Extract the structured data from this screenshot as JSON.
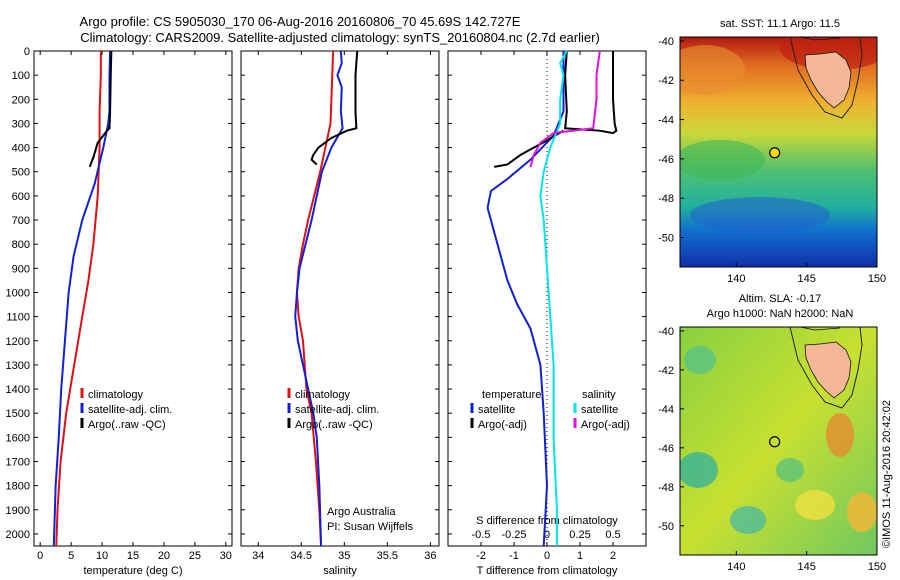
{
  "header": {
    "line1": "Argo profile: CS 5905030_170 06-Aug-2016 20160806_70 45.69S 142.727E",
    "line2": "Climatology: CARS2009. Satellite-adjusted climatology: synTS_20160804.nc (2.7d earlier)"
  },
  "depth_ticks": [
    0,
    100,
    200,
    300,
    400,
    500,
    600,
    700,
    800,
    900,
    1000,
    1100,
    1200,
    1300,
    1400,
    1500,
    1600,
    1700,
    1800,
    1900,
    2000
  ],
  "colors": {
    "clim": "#e01010",
    "sat": "#1020d8",
    "argo": "#000000",
    "sal": "#00e5ee",
    "argoadj": "#e010e0"
  },
  "side_text": "©IMOS 11-Aug-2016 20:42:02",
  "chart_data": [
    {
      "type": "line",
      "xlabel": "temperature (deg C)",
      "ylim": [
        2050,
        0
      ],
      "xlim": [
        -1,
        31
      ],
      "xticks": [
        0,
        5,
        10,
        15,
        20,
        25,
        30
      ],
      "legend": [
        "climatology",
        "satellite-adj. clim.",
        "Argo(..raw -QC)"
      ],
      "series": [
        {
          "name": "climatology",
          "color": "clim",
          "points": [
            [
              9.8,
              0
            ],
            [
              9.8,
              100
            ],
            [
              9.6,
              250
            ],
            [
              9.6,
              400
            ],
            [
              9.3,
              600
            ],
            [
              8.6,
              800
            ],
            [
              7.8,
              950
            ],
            [
              6.8,
              1100
            ],
            [
              5.5,
              1300
            ],
            [
              4.2,
              1500
            ],
            [
              3.3,
              1700
            ],
            [
              2.8,
              1900
            ],
            [
              2.6,
              2050
            ]
          ]
        },
        {
          "name": "satellite-adj. clim.",
          "color": "sat",
          "points": [
            [
              11.3,
              0
            ],
            [
              11.2,
              100
            ],
            [
              11.2,
              250
            ],
            [
              11.0,
              300
            ],
            [
              10.2,
              400
            ],
            [
              8.8,
              550
            ],
            [
              6.8,
              700
            ],
            [
              5.4,
              850
            ],
            [
              4.6,
              1000
            ],
            [
              4.0,
              1200
            ],
            [
              3.4,
              1400
            ],
            [
              3.0,
              1600
            ],
            [
              2.5,
              1800
            ],
            [
              2.2,
              2050
            ]
          ]
        },
        {
          "name": "Argo(..raw -QC)",
          "color": "argo",
          "points": [
            [
              11.5,
              0
            ],
            [
              11.4,
              100
            ],
            [
              11.3,
              250
            ],
            [
              11.2,
              320
            ],
            [
              10.8,
              330
            ],
            [
              9.3,
              380
            ],
            [
              8.6,
              440
            ],
            [
              8.0,
              480
            ]
          ]
        }
      ]
    },
    {
      "type": "line",
      "xlabel": "salinity",
      "ylim": [
        2050,
        0
      ],
      "xlim": [
        33.8,
        36.1
      ],
      "xticks": [
        34,
        34.5,
        35,
        35.5,
        36
      ],
      "xticklabels": [
        "34",
        "34.5",
        "35",
        "35.5",
        "36"
      ],
      "legend": [
        "climatology",
        "satellite-adj. clim.",
        "Argo(..raw -QC)"
      ],
      "annotation": [
        "Argo Australia",
        "PI: Susan Wijffels"
      ],
      "series": [
        {
          "name": "climatology",
          "color": "clim",
          "points": [
            [
              34.87,
              0
            ],
            [
              34.86,
              100
            ],
            [
              34.85,
              200
            ],
            [
              34.84,
              300
            ],
            [
              34.78,
              400
            ],
            [
              34.72,
              500
            ],
            [
              34.65,
              600
            ],
            [
              34.58,
              700
            ],
            [
              34.52,
              800
            ],
            [
              34.47,
              900
            ],
            [
              34.45,
              1000
            ],
            [
              34.47,
              1100
            ],
            [
              34.52,
              1200
            ],
            [
              34.56,
              1400
            ],
            [
              34.62,
              1500
            ],
            [
              34.67,
              1700
            ],
            [
              34.71,
              1900
            ],
            [
              34.73,
              2050
            ]
          ]
        },
        {
          "name": "satellite-adj. clim.",
          "color": "sat",
          "points": [
            [
              34.96,
              0
            ],
            [
              34.97,
              50
            ],
            [
              34.92,
              100
            ],
            [
              34.97,
              150
            ],
            [
              34.96,
              250
            ],
            [
              34.98,
              320
            ],
            [
              34.85,
              400
            ],
            [
              34.74,
              500
            ],
            [
              34.68,
              600
            ],
            [
              34.62,
              700
            ],
            [
              34.55,
              800
            ],
            [
              34.48,
              900
            ],
            [
              34.45,
              1000
            ],
            [
              34.43,
              1100
            ],
            [
              34.46,
              1200
            ],
            [
              34.52,
              1300
            ],
            [
              34.58,
              1400
            ],
            [
              34.64,
              1500
            ],
            [
              34.68,
              1600
            ],
            [
              34.71,
              1800
            ],
            [
              34.73,
              2050
            ]
          ]
        },
        {
          "name": "Argo(..raw -QC)",
          "color": "argo",
          "points": [
            [
              35.15,
              0
            ],
            [
              35.13,
              100
            ],
            [
              35.13,
              250
            ],
            [
              35.14,
              320
            ],
            [
              35.03,
              330
            ],
            [
              34.85,
              360
            ],
            [
              34.7,
              400
            ],
            [
              34.64,
              430
            ],
            [
              34.62,
              450
            ],
            [
              34.68,
              470
            ]
          ]
        }
      ]
    },
    {
      "type": "line",
      "xlabel": "T difference from climatology",
      "xlabel_top": "S difference from climatology",
      "ylim": [
        2050,
        0
      ],
      "xlim": [
        -3,
        3
      ],
      "xticks": [
        -2,
        -1,
        0,
        1,
        2
      ],
      "xticklabels_top": [
        "-0.5",
        "-0.25",
        "0",
        "0.25",
        "0.5"
      ],
      "legend": [
        "temperature",
        "satellite",
        "Argo(-adj)",
        "salinity",
        "satellite",
        "Argo(-adj)"
      ],
      "series": [
        {
          "name": "satellite",
          "color": "sat",
          "points": [
            [
              0.5,
              0
            ],
            [
              0.5,
              100
            ],
            [
              0.5,
              250
            ],
            [
              0.2,
              350
            ],
            [
              -0.5,
              450
            ],
            [
              -1.2,
              530
            ],
            [
              -1.7,
              580
            ],
            [
              -1.8,
              650
            ],
            [
              -1.6,
              750
            ],
            [
              -1.4,
              850
            ],
            [
              -1.2,
              950
            ],
            [
              -0.9,
              1050
            ],
            [
              -0.5,
              1150
            ],
            [
              -0.2,
              1300
            ],
            [
              -0.1,
              1500
            ],
            [
              0.0,
              1800
            ],
            [
              -0.1,
              2050
            ]
          ]
        },
        {
          "name": "Argo(-adj)",
          "color": "argo",
          "points": [
            [
              0.6,
              0
            ],
            [
              0.55,
              100
            ],
            [
              0.6,
              250
            ],
            [
              0.55,
              320
            ],
            [
              1.6,
              330
            ],
            [
              2.0,
              340
            ],
            [
              2.1,
              330
            ],
            [
              2.05,
              300
            ],
            [
              2.0,
              200
            ],
            [
              2.0,
              100
            ],
            [
              2.0,
              0
            ]
          ]
        },
        {
          "name": "Argo(-adj)",
          "color": "argo",
          "points": [
            [
              0.5,
              330
            ],
            [
              0.0,
              370
            ],
            [
              -0.8,
              430
            ],
            [
              -1.2,
              470
            ],
            [
              -1.6,
              480
            ]
          ]
        },
        {
          "name": "satellite",
          "color": "sal",
          "points": [
            [
              0.6,
              0
            ],
            [
              0.4,
              50
            ],
            [
              0.5,
              100
            ],
            [
              0.4,
              200
            ],
            [
              0.4,
              300
            ],
            [
              0.1,
              400
            ],
            [
              -0.1,
              500
            ],
            [
              -0.2,
              600
            ],
            [
              -0.1,
              700
            ],
            [
              0.0,
              900
            ],
            [
              0.1,
              1100
            ],
            [
              0.2,
              1300
            ],
            [
              0.2,
              1600
            ],
            [
              0.3,
              1900
            ],
            [
              0.3,
              2050
            ]
          ]
        },
        {
          "name": "Argo(-adj)",
          "color": "argoadj",
          "points": [
            [
              1.6,
              0
            ],
            [
              1.5,
              100
            ],
            [
              1.5,
              200
            ],
            [
              1.4,
              320
            ],
            [
              0.2,
              340
            ],
            [
              -0.2,
              380
            ],
            [
              -0.4,
              430
            ],
            [
              -0.5,
              480
            ]
          ]
        }
      ]
    },
    {
      "type": "heatmap",
      "title": "sat. SST: 11.1  Argo: 11.5",
      "xlim": [
        136,
        150
      ],
      "ylim": [
        -51.5,
        -39.8
      ],
      "xticks": [
        140,
        145,
        150
      ],
      "yticks": [
        -40,
        -42,
        -44,
        -46,
        -48,
        -50
      ],
      "marker": [
        142.727,
        -45.69
      ]
    },
    {
      "type": "heatmap",
      "title": "Altim. SLA: -0.17",
      "subtitle": "Argo h1000: NaN h2000: NaN",
      "xlim": [
        136,
        150
      ],
      "ylim": [
        -51.5,
        -39.8
      ],
      "xticks": [
        140,
        145,
        150
      ],
      "yticks": [
        -40,
        -42,
        -44,
        -46,
        -48,
        -50
      ],
      "marker": [
        142.727,
        -45.69
      ]
    }
  ]
}
